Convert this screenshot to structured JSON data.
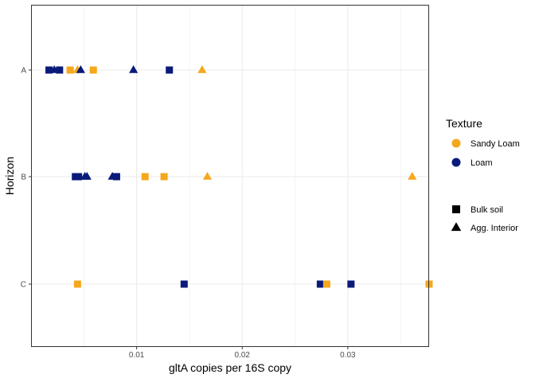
{
  "chart_data": {
    "type": "scatter",
    "title": "",
    "xlabel": "gltA copies per 16S copy",
    "ylabel": "Horizon",
    "xlim": [
      0.0,
      0.0377
    ],
    "x_ticks": [
      0.01,
      0.02,
      0.03
    ],
    "x_tick_labels": [
      "0.01",
      "0.02",
      "0.03"
    ],
    "categories": [
      "C",
      "B",
      "A"
    ],
    "grid": true,
    "legend_position": "right",
    "legend": {
      "color_title": "Texture",
      "color_entries": [
        {
          "label": "Sandy Loam",
          "color": "#F5A81C"
        },
        {
          "label": "Loam",
          "color": "#0A1A7A"
        }
      ],
      "shape_entries": [
        {
          "label": "Bulk soil",
          "shape": "square"
        },
        {
          "label": "Agg. Interior",
          "shape": "triangle"
        }
      ]
    },
    "points": [
      {
        "x": 0.0017,
        "y": "A",
        "texture": "Loam",
        "sample": "Bulk soil"
      },
      {
        "x": 0.0022,
        "y": "A",
        "texture": "Loam",
        "sample": "Agg. Interior"
      },
      {
        "x": 0.0027,
        "y": "A",
        "texture": "Loam",
        "sample": "Bulk soil"
      },
      {
        "x": 0.0037,
        "y": "A",
        "texture": "Sandy Loam",
        "sample": "Bulk soil"
      },
      {
        "x": 0.0044,
        "y": "A",
        "texture": "Sandy Loam",
        "sample": "Agg. Interior"
      },
      {
        "x": 0.0047,
        "y": "A",
        "texture": "Loam",
        "sample": "Agg. Interior"
      },
      {
        "x": 0.0059,
        "y": "A",
        "texture": "Sandy Loam",
        "sample": "Bulk soil"
      },
      {
        "x": 0.0097,
        "y": "A",
        "texture": "Loam",
        "sample": "Agg. Interior"
      },
      {
        "x": 0.0131,
        "y": "A",
        "texture": "Loam",
        "sample": "Bulk soil"
      },
      {
        "x": 0.0162,
        "y": "A",
        "texture": "Sandy Loam",
        "sample": "Agg. Interior"
      },
      {
        "x": 0.0042,
        "y": "B",
        "texture": "Loam",
        "sample": "Bulk soil"
      },
      {
        "x": 0.0045,
        "y": "B",
        "texture": "Loam",
        "sample": "Bulk soil"
      },
      {
        "x": 0.0051,
        "y": "B",
        "texture": "Loam",
        "sample": "Agg. Interior"
      },
      {
        "x": 0.0053,
        "y": "B",
        "texture": "Loam",
        "sample": "Agg. Interior"
      },
      {
        "x": 0.0077,
        "y": "B",
        "texture": "Loam",
        "sample": "Agg. Interior"
      },
      {
        "x": 0.0081,
        "y": "B",
        "texture": "Loam",
        "sample": "Bulk soil"
      },
      {
        "x": 0.0108,
        "y": "B",
        "texture": "Sandy Loam",
        "sample": "Bulk soil"
      },
      {
        "x": 0.0126,
        "y": "B",
        "texture": "Sandy Loam",
        "sample": "Bulk soil"
      },
      {
        "x": 0.0167,
        "y": "B",
        "texture": "Sandy Loam",
        "sample": "Agg. Interior"
      },
      {
        "x": 0.0361,
        "y": "B",
        "texture": "Sandy Loam",
        "sample": "Agg. Interior"
      },
      {
        "x": 0.0044,
        "y": "C",
        "texture": "Sandy Loam",
        "sample": "Bulk soil"
      },
      {
        "x": 0.0145,
        "y": "C",
        "texture": "Loam",
        "sample": "Bulk soil"
      },
      {
        "x": 0.0274,
        "y": "C",
        "texture": "Loam",
        "sample": "Bulk soil"
      },
      {
        "x": 0.028,
        "y": "C",
        "texture": "Sandy Loam",
        "sample": "Bulk soil"
      },
      {
        "x": 0.0303,
        "y": "C",
        "texture": "Loam",
        "sample": "Bulk soil"
      },
      {
        "x": 0.0377,
        "y": "C",
        "texture": "Sandy Loam",
        "sample": "Bulk soil"
      }
    ]
  }
}
